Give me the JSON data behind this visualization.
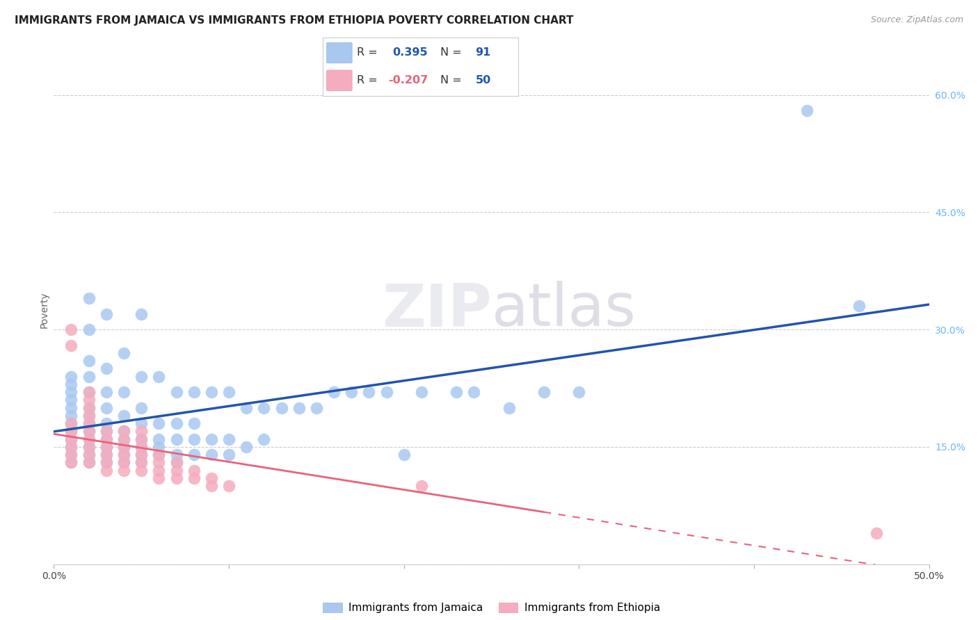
{
  "title": "IMMIGRANTS FROM JAMAICA VS IMMIGRANTS FROM ETHIOPIA POVERTY CORRELATION CHART",
  "source": "Source: ZipAtlas.com",
  "ylabel": "Poverty",
  "xlim": [
    0.0,
    0.5
  ],
  "ylim": [
    0.0,
    0.65
  ],
  "x_ticks": [
    0.0,
    0.1,
    0.2,
    0.3,
    0.4,
    0.5
  ],
  "x_tick_labels": [
    "0.0%",
    "",
    "",
    "",
    "",
    "50.0%"
  ],
  "y_ticks": [
    0.0,
    0.15,
    0.3,
    0.45,
    0.6
  ],
  "y_tick_labels": [
    "",
    "15.0%",
    "30.0%",
    "45.0%",
    "60.0%"
  ],
  "jamaica_color": "#A8C8F0",
  "ethiopia_color": "#F5ACBE",
  "jamaica_line_color": "#2255AA",
  "ethiopia_line_color": "#E8637A",
  "r_jamaica": 0.395,
  "n_jamaica": 91,
  "r_ethiopia": -0.207,
  "n_ethiopia": 50,
  "jamaica_label": "Immigrants from Jamaica",
  "ethiopia_label": "Immigrants from Ethiopia",
  "jamaica_x": [
    0.01,
    0.01,
    0.01,
    0.01,
    0.01,
    0.01,
    0.01,
    0.01,
    0.01,
    0.01,
    0.01,
    0.01,
    0.02,
    0.02,
    0.02,
    0.02,
    0.02,
    0.02,
    0.02,
    0.02,
    0.02,
    0.02,
    0.02,
    0.02,
    0.02,
    0.03,
    0.03,
    0.03,
    0.03,
    0.03,
    0.03,
    0.03,
    0.03,
    0.03,
    0.03,
    0.04,
    0.04,
    0.04,
    0.04,
    0.04,
    0.04,
    0.04,
    0.04,
    0.05,
    0.05,
    0.05,
    0.05,
    0.05,
    0.05,
    0.05,
    0.05,
    0.06,
    0.06,
    0.06,
    0.06,
    0.06,
    0.07,
    0.07,
    0.07,
    0.07,
    0.07,
    0.08,
    0.08,
    0.08,
    0.08,
    0.09,
    0.09,
    0.09,
    0.1,
    0.1,
    0.1,
    0.11,
    0.11,
    0.12,
    0.12,
    0.13,
    0.14,
    0.15,
    0.16,
    0.17,
    0.18,
    0.19,
    0.2,
    0.21,
    0.23,
    0.24,
    0.26,
    0.28,
    0.3,
    0.43,
    0.46
  ],
  "jamaica_y": [
    0.13,
    0.14,
    0.15,
    0.16,
    0.17,
    0.18,
    0.19,
    0.2,
    0.21,
    0.22,
    0.23,
    0.24,
    0.13,
    0.14,
    0.15,
    0.16,
    0.17,
    0.18,
    0.19,
    0.2,
    0.22,
    0.24,
    0.26,
    0.3,
    0.34,
    0.13,
    0.14,
    0.15,
    0.16,
    0.17,
    0.18,
    0.2,
    0.22,
    0.25,
    0.32,
    0.13,
    0.14,
    0.15,
    0.16,
    0.17,
    0.19,
    0.22,
    0.27,
    0.13,
    0.14,
    0.15,
    0.16,
    0.18,
    0.2,
    0.24,
    0.32,
    0.14,
    0.15,
    0.16,
    0.18,
    0.24,
    0.13,
    0.14,
    0.16,
    0.18,
    0.22,
    0.14,
    0.16,
    0.18,
    0.22,
    0.14,
    0.16,
    0.22,
    0.14,
    0.16,
    0.22,
    0.15,
    0.2,
    0.16,
    0.2,
    0.2,
    0.2,
    0.2,
    0.22,
    0.22,
    0.22,
    0.22,
    0.14,
    0.22,
    0.22,
    0.22,
    0.2,
    0.22,
    0.22,
    0.58,
    0.33
  ],
  "ethiopia_x": [
    0.01,
    0.01,
    0.01,
    0.01,
    0.01,
    0.01,
    0.01,
    0.01,
    0.02,
    0.02,
    0.02,
    0.02,
    0.02,
    0.02,
    0.02,
    0.02,
    0.02,
    0.02,
    0.03,
    0.03,
    0.03,
    0.03,
    0.03,
    0.03,
    0.04,
    0.04,
    0.04,
    0.04,
    0.04,
    0.04,
    0.05,
    0.05,
    0.05,
    0.05,
    0.05,
    0.05,
    0.06,
    0.06,
    0.06,
    0.06,
    0.07,
    0.07,
    0.07,
    0.08,
    0.08,
    0.09,
    0.09,
    0.1,
    0.21,
    0.47
  ],
  "ethiopia_y": [
    0.13,
    0.14,
    0.15,
    0.16,
    0.17,
    0.18,
    0.28,
    0.3,
    0.13,
    0.14,
    0.15,
    0.16,
    0.17,
    0.18,
    0.19,
    0.2,
    0.21,
    0.22,
    0.12,
    0.13,
    0.14,
    0.15,
    0.16,
    0.17,
    0.12,
    0.13,
    0.14,
    0.15,
    0.16,
    0.17,
    0.12,
    0.13,
    0.14,
    0.15,
    0.16,
    0.17,
    0.11,
    0.12,
    0.13,
    0.14,
    0.11,
    0.12,
    0.13,
    0.11,
    0.12,
    0.1,
    0.11,
    0.1,
    0.1,
    0.04
  ],
  "background_color": "#FFFFFF",
  "grid_color": "#CCCCCC",
  "right_tick_color": "#6EB6F5",
  "title_fontsize": 11,
  "tick_fontsize": 10,
  "source_fontsize": 9
}
